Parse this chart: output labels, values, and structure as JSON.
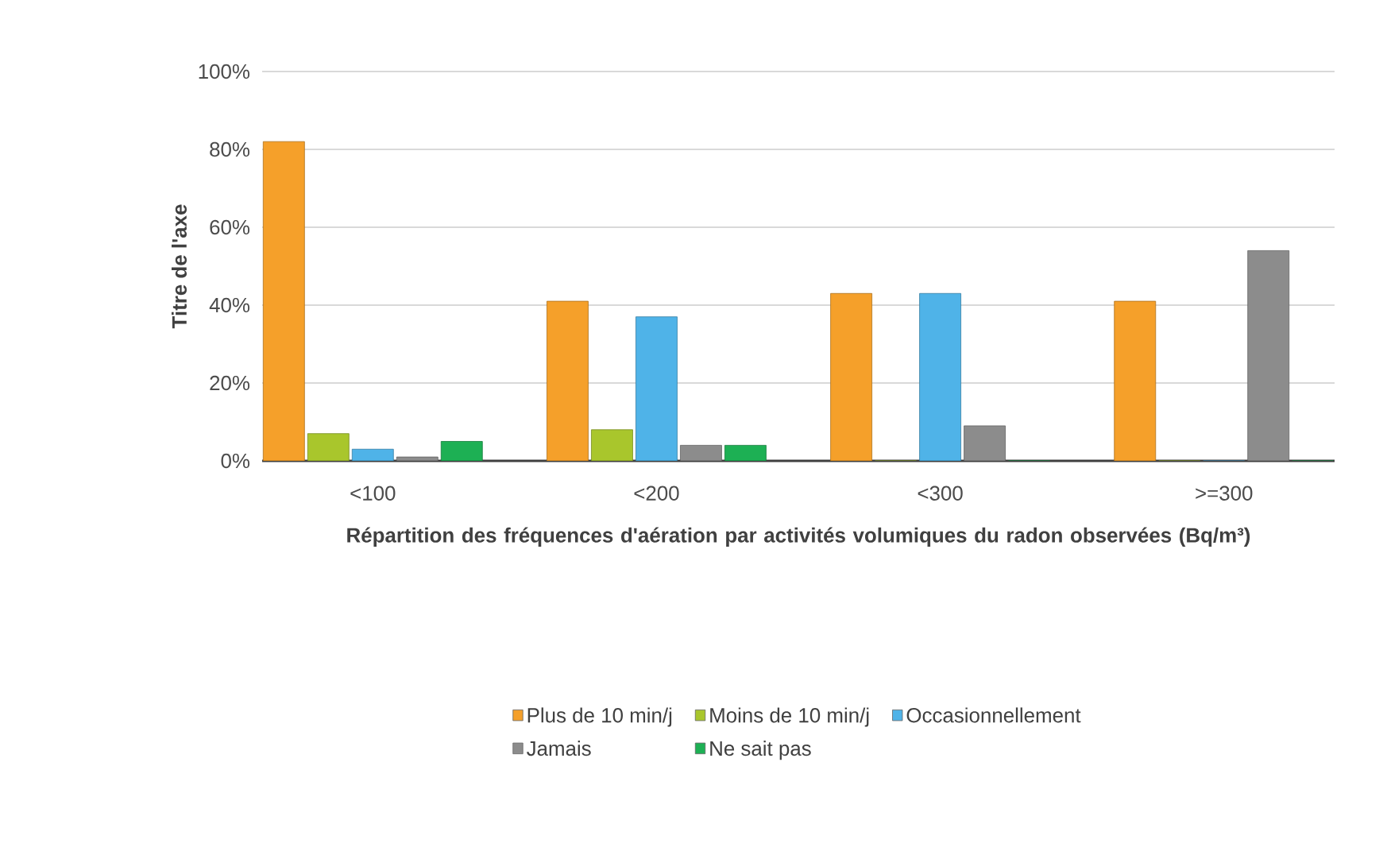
{
  "chart_data": {
    "type": "bar",
    "xlabel": "Répartition des fréquences d'aération par activités volumiques du radon observées (Bq/m³)",
    "ylabel": "Titre de l'axe",
    "categories": [
      "<100",
      "<200",
      "<300",
      ">=300"
    ],
    "series": [
      {
        "name": "Plus de 10 min/j",
        "color": "#f5a02a",
        "values": [
          82,
          41,
          43,
          41
        ]
      },
      {
        "name": "Moins de 10 min/j",
        "color": "#a9c62c",
        "values": [
          7,
          8,
          0,
          0
        ]
      },
      {
        "name": "Occasionnellement",
        "color": "#4fb3e8",
        "values": [
          3,
          37,
          43,
          0
        ]
      },
      {
        "name": "Jamais",
        "color": "#8c8c8c",
        "values": [
          1,
          4,
          9,
          54
        ]
      },
      {
        "name": "Ne sait pas",
        "color": "#1db054",
        "values": [
          5,
          4,
          0,
          0
        ]
      }
    ],
    "ylim": [
      0,
      100
    ],
    "yticks": [
      {
        "value": 0,
        "label": "0%"
      },
      {
        "value": 20,
        "label": "20%"
      },
      {
        "value": 40,
        "label": "40%"
      },
      {
        "value": 60,
        "label": "60%"
      },
      {
        "value": 80,
        "label": "80%"
      },
      {
        "value": 100,
        "label": "100%"
      }
    ],
    "grid": "y",
    "legend": "bottom"
  }
}
